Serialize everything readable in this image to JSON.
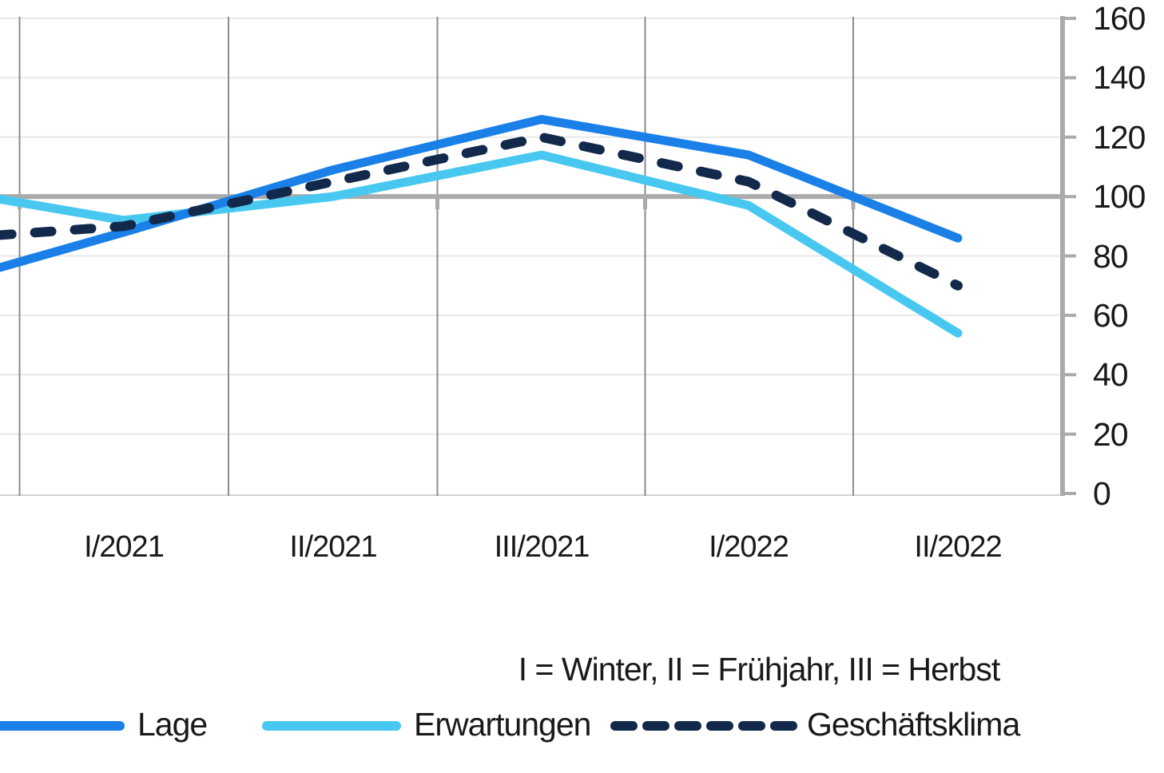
{
  "chart_data": {
    "type": "line",
    "title": "",
    "categories": [
      "I/2021",
      "II/2021",
      "III/2021",
      "I/2022",
      "II/2022"
    ],
    "series": [
      {
        "name": "Lage",
        "style": "solid",
        "color": "#1a80e8",
        "offscreen_prev_value": 68,
        "values": [
          88,
          109,
          126,
          114,
          86
        ]
      },
      {
        "name": "Erwartungen",
        "style": "solid",
        "color": "#48c8f0",
        "offscreen_prev_value": 104,
        "values": [
          92,
          100,
          114,
          97,
          54
        ]
      },
      {
        "name": "Geschäftsklima",
        "style": "dashed",
        "color": "#13294b",
        "offscreen_prev_value": 85,
        "values": [
          90,
          105,
          120,
          105,
          70
        ]
      }
    ],
    "y_axis": {
      "side": "right",
      "min": 0,
      "max": 160,
      "step": 20,
      "ticks": [
        "0",
        "20",
        "40",
        "60",
        "80",
        "100",
        "120",
        "140",
        "160"
      ],
      "baseline_value": 100
    },
    "x_axis": {
      "note": "I = Winter, II = Frühjahr, III = Herbst"
    },
    "legend_position": "bottom",
    "grid": "on",
    "left_edge_clipped": true
  },
  "legend": {
    "items": [
      {
        "label": "Lage"
      },
      {
        "label": "Erwartungen"
      },
      {
        "label": "Geschäftsklima"
      }
    ]
  },
  "colors": {
    "grid_horizontal": "#e8e8e8",
    "grid_vertical": "#8c8c8c",
    "axis_gray": "#ababab",
    "bottom_border": "#d2d2d2",
    "text": "#191919"
  }
}
